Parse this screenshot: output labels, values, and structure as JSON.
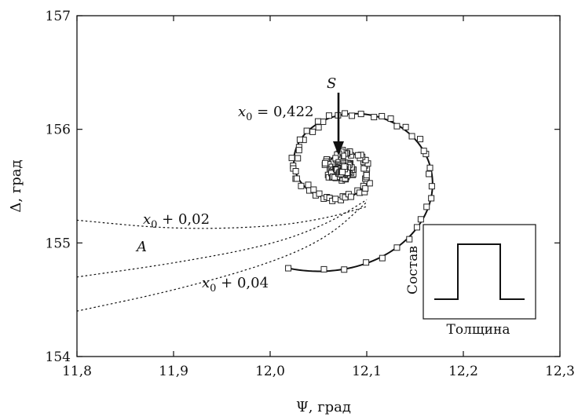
{
  "chart_data": {
    "type": "scatter",
    "xlabel": "Ψ, град",
    "ylabel": "Δ, град",
    "xlim": [
      11.8,
      12.3
    ],
    "ylim": [
      154,
      157
    ],
    "xticks": [
      "11,8",
      "11,9",
      "12,0",
      "12,1",
      "12,2",
      "12,3"
    ],
    "yticks": [
      "154",
      "155",
      "156",
      "157"
    ],
    "grid": false,
    "annotations": {
      "S": "S",
      "A": "A",
      "x0_main": "x0 = 0,422",
      "x0_plus_002": "x0 + 0,02",
      "x0_plus_004": "x0 + 0,04"
    },
    "inset": {
      "ylabel": "Состав",
      "xlabel": "Толщина",
      "profile": "rectangular pulse"
    },
    "series": [
      {
        "name": "model_solid",
        "style": "solid",
        "spiral": {
          "cx": 12.075,
          "cy": 155.65,
          "a0": 0.135,
          "b0": 0.96,
          "t0": 4.37,
          "turns": 3.3,
          "decay_per_rad": 0.195,
          "rot_deg": -5
        }
      },
      {
        "name": "measured_squares",
        "style": "markers",
        "marker_count": 220
      },
      {
        "name": "x0 + 0,02",
        "style": "dotted",
        "points": [
          [
            11.8,
            155.2
          ],
          [
            11.9,
            155.12
          ],
          [
            12.0,
            155.14
          ],
          [
            12.06,
            155.22
          ],
          [
            12.1,
            155.32
          ]
        ]
      },
      {
        "name": "x0 + 0,04",
        "style": "dotted",
        "points": [
          [
            11.8,
            154.7
          ],
          [
            11.9,
            154.82
          ],
          [
            12.0,
            154.98
          ],
          [
            12.06,
            155.17
          ],
          [
            12.1,
            155.38
          ]
        ]
      },
      {
        "name": "x0 + 0,04 lower",
        "style": "dotted",
        "points": [
          [
            11.8,
            154.4
          ],
          [
            11.9,
            154.58
          ],
          [
            12.0,
            154.82
          ],
          [
            12.06,
            155.05
          ],
          [
            12.1,
            155.36
          ]
        ]
      }
    ]
  }
}
